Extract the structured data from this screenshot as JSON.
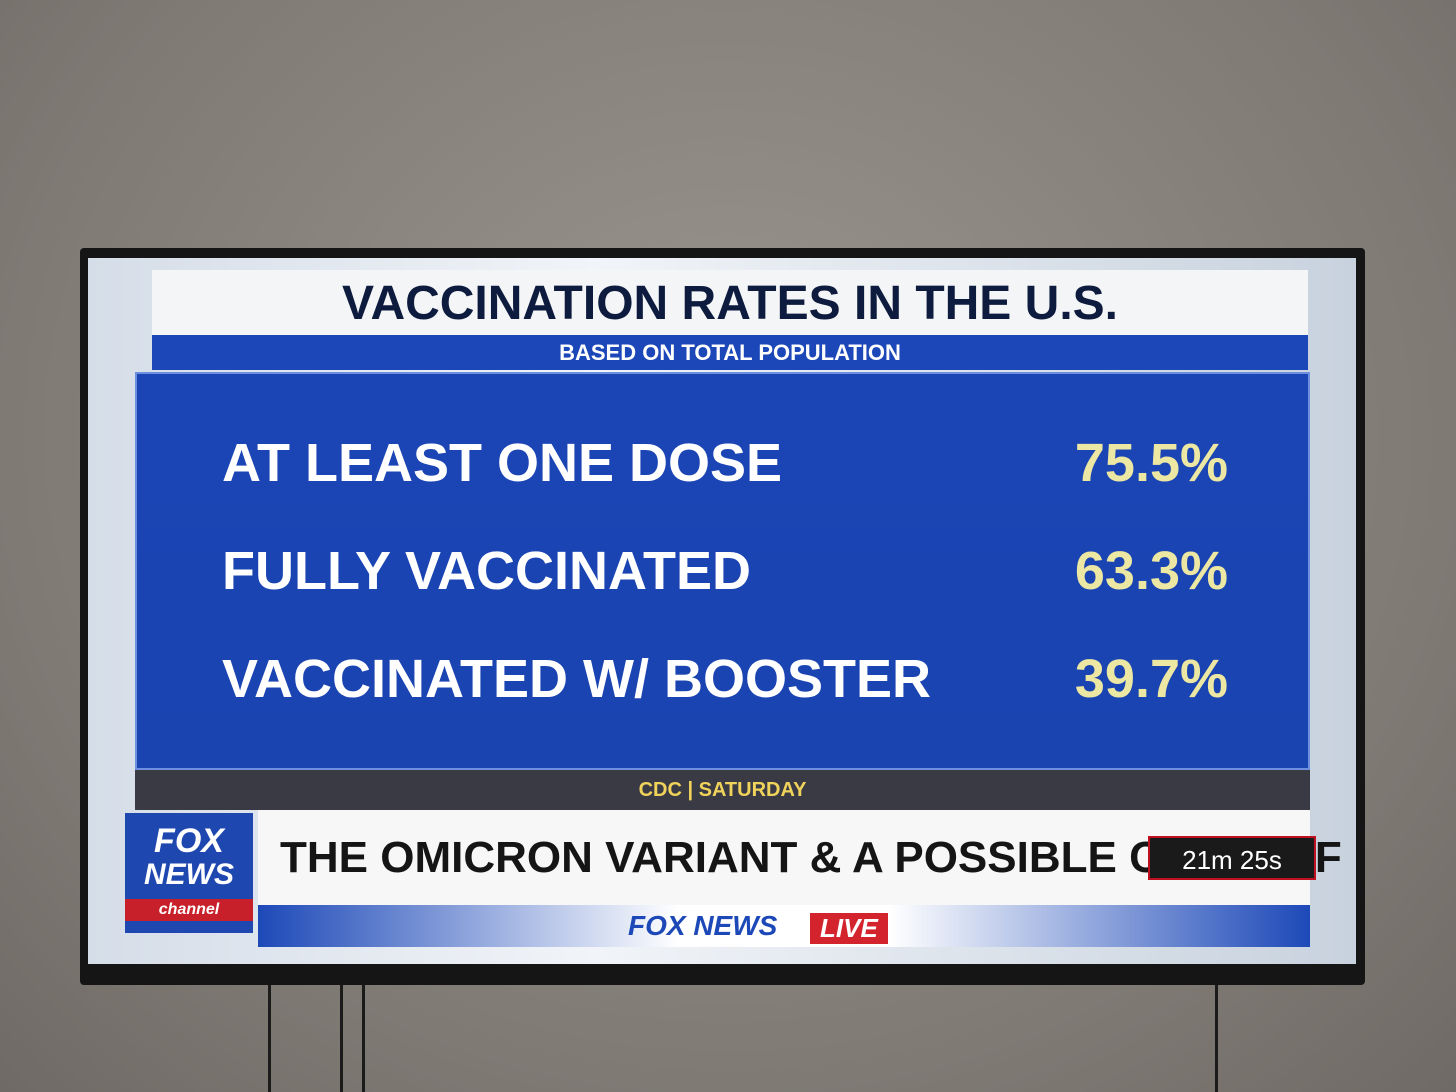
{
  "graphic": {
    "title": "VACCINATION RATES IN THE U.S.",
    "subtitle": "BASED ON TOTAL POPULATION",
    "rows": [
      [
        "AT LEAST ONE DOSE",
        "75.5%"
      ],
      [
        "FULLY VACCINATED",
        "63.3%"
      ],
      [
        "VACCINATED W/ BOOSTER",
        "39.7%"
      ]
    ],
    "source": "CDC | SATURDAY"
  },
  "logo": {
    "line1": "FOX",
    "line2": "NEWS",
    "line3": "channel"
  },
  "ticker": {
    "headline": "THE OMICRON VARIANT & A POSSIBLE COVID OF",
    "timer": "21m 25s"
  },
  "bug": {
    "brand": "FOX NEWS",
    "live": "LIVE"
  }
}
